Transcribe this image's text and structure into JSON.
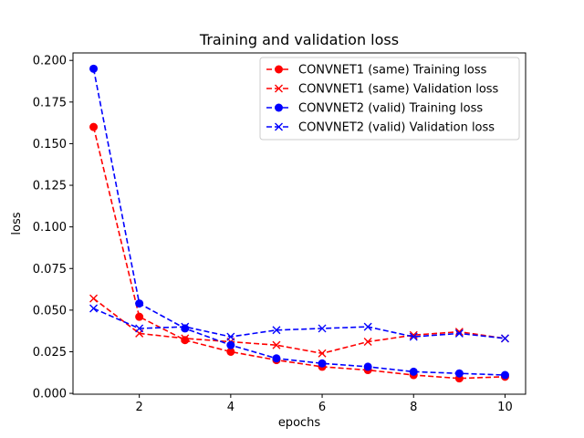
{
  "chart_data": {
    "type": "line",
    "title": "Training and validation loss",
    "xlabel": "epochs",
    "ylabel": "loss",
    "xlim": [
      0.55,
      10.45
    ],
    "ylim": [
      -0.0005,
      0.2045
    ],
    "x_ticks": [
      2,
      4,
      6,
      8,
      10
    ],
    "x_tick_labels": [
      "2",
      "4",
      "6",
      "8",
      "10"
    ],
    "y_ticks": [
      0.0,
      0.025,
      0.05,
      0.075,
      0.1,
      0.125,
      0.15,
      0.175,
      0.2
    ],
    "y_tick_labels": [
      "0.000",
      "0.025",
      "0.050",
      "0.075",
      "0.100",
      "0.125",
      "0.150",
      "0.175",
      "0.200"
    ],
    "grid": false,
    "legend_position": "upper-right",
    "x": [
      1,
      2,
      3,
      4,
      5,
      6,
      7,
      8,
      9,
      10
    ],
    "series": [
      {
        "name": "CONVNET1 (same) Training loss",
        "color": "#ff0000",
        "marker": "circle",
        "values": [
          0.16,
          0.046,
          0.032,
          0.025,
          0.02,
          0.016,
          0.014,
          0.011,
          0.009,
          0.01
        ]
      },
      {
        "name": "CONVNET1 (same) Validation loss",
        "color": "#ff0000",
        "marker": "x",
        "values": [
          0.057,
          0.036,
          0.033,
          0.031,
          0.029,
          0.024,
          0.031,
          0.035,
          0.037,
          0.033
        ]
      },
      {
        "name": "CONVNET2 (valid) Training loss",
        "color": "#0000ff",
        "marker": "circle",
        "values": [
          0.195,
          0.054,
          0.039,
          0.029,
          0.021,
          0.018,
          0.016,
          0.013,
          0.012,
          0.011
        ]
      },
      {
        "name": "CONVNET2 (valid) Validation loss",
        "color": "#0000ff",
        "marker": "x",
        "values": [
          0.051,
          0.039,
          0.04,
          0.034,
          0.038,
          0.039,
          0.04,
          0.034,
          0.036,
          0.033
        ]
      }
    ]
  }
}
